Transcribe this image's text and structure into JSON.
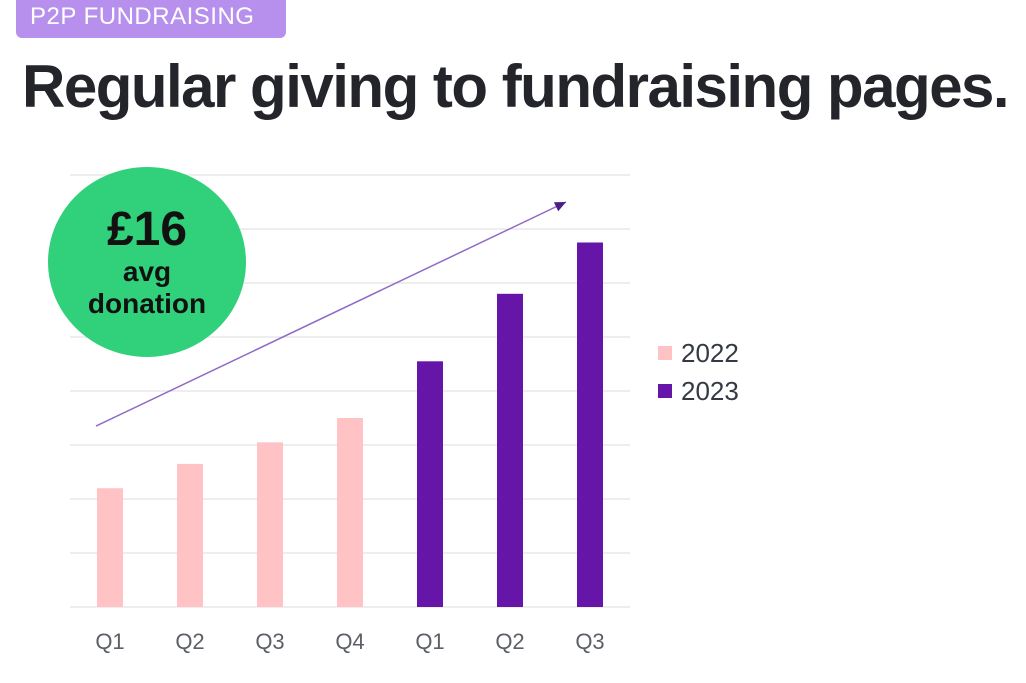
{
  "tag": "P2P FUNDRAISING",
  "title": "Regular giving to fundraising pages.",
  "badge": {
    "amount": "£16",
    "line1": "avg",
    "line2": "donation"
  },
  "colors": {
    "2022": "#ffc3c6",
    "2023": "#6516a8",
    "grid": "#e3e3e3",
    "trend": "#8f6bc6",
    "badge": "#31d17c",
    "tag": "#b690ec"
  },
  "chart_data": {
    "type": "bar",
    "categories": [
      "Q1",
      "Q2",
      "Q3",
      "Q4",
      "Q1",
      "Q2",
      "Q3"
    ],
    "series": [
      {
        "name": "2022",
        "values": [
          22,
          26.5,
          30.5,
          35,
          null,
          null,
          null
        ]
      },
      {
        "name": "2023",
        "values": [
          null,
          null,
          null,
          null,
          45.5,
          58,
          67.5
        ]
      }
    ],
    "ylim": [
      0,
      80
    ],
    "grid": true,
    "legend": "right",
    "trend_line": true
  }
}
